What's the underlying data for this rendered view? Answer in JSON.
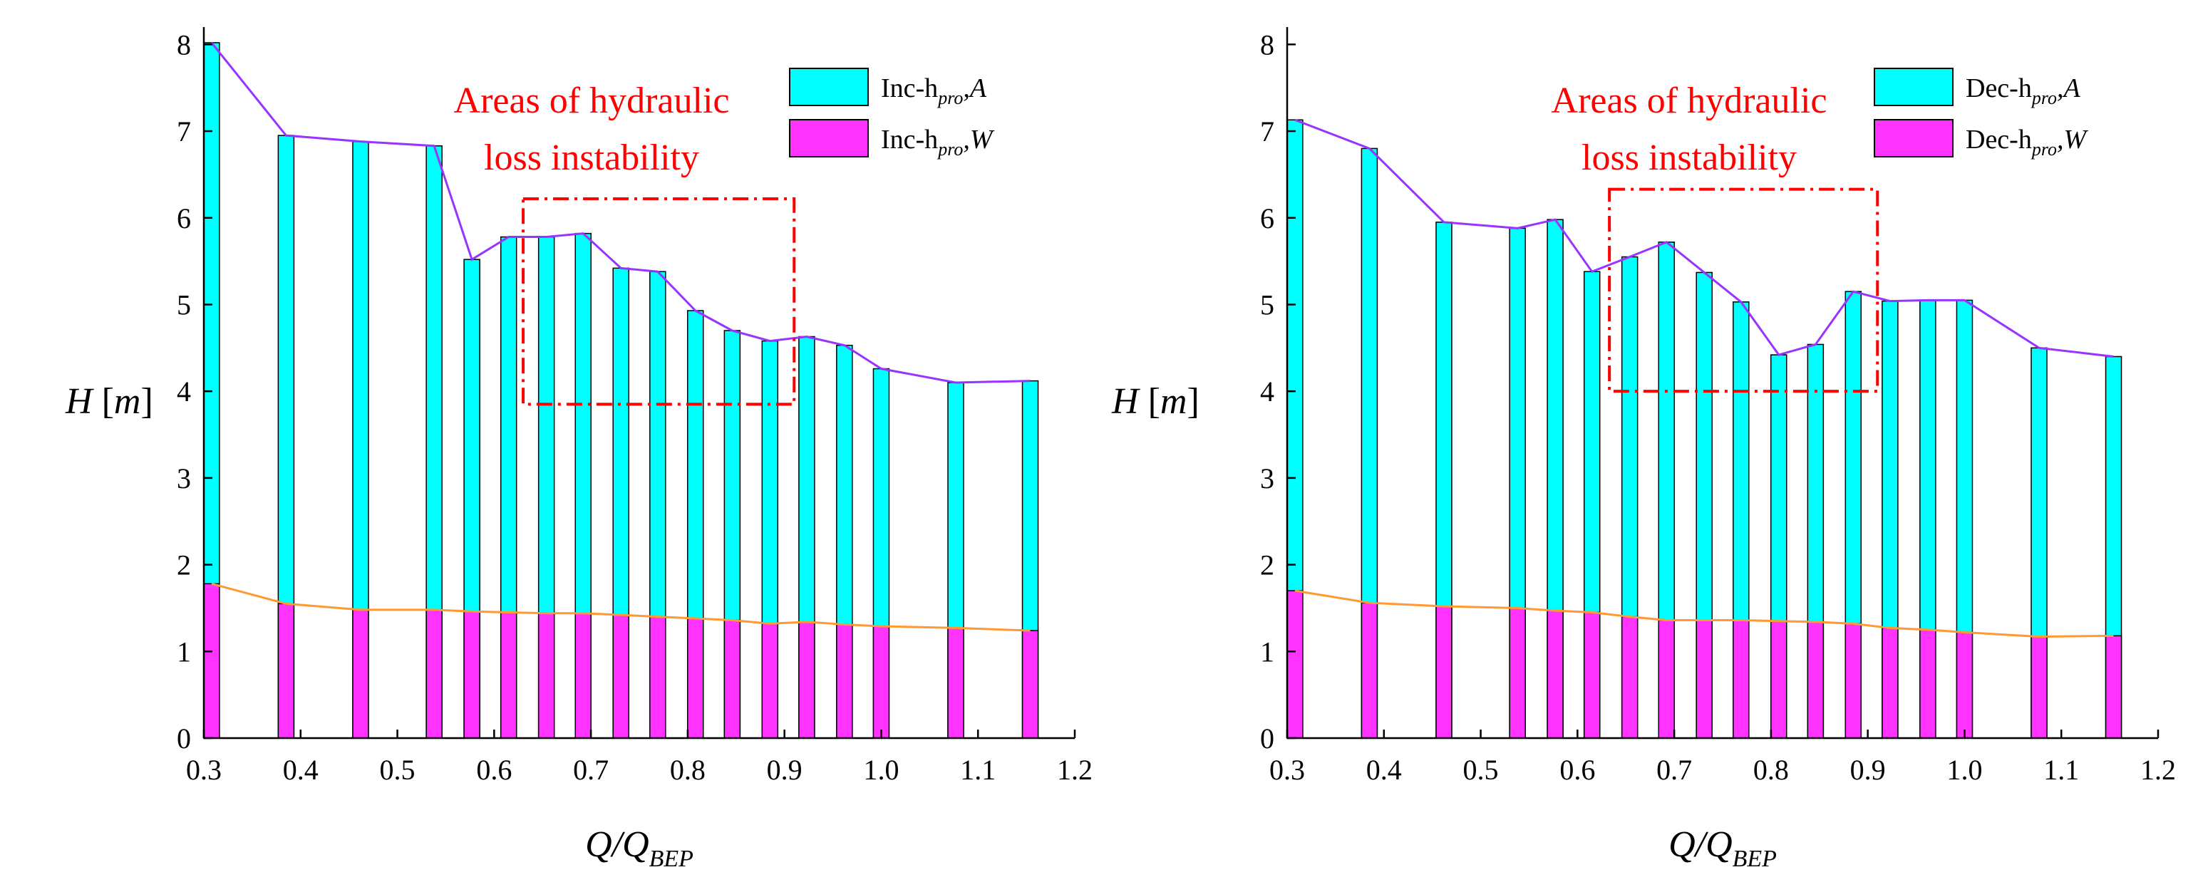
{
  "colors": {
    "bar_a": "#00ffff",
    "bar_w": "#ff33ff",
    "line_a": "#9933ff",
    "line_w": "#ff9933",
    "annotation": "#ff0000",
    "axis": "#000000"
  },
  "chart_data": [
    {
      "type": "bar",
      "title": "",
      "xlabel": "Q/Q",
      "xlabel_sub": "BEP",
      "ylabel": "H",
      "ylabel_unit": "m",
      "xlim": [
        0.3,
        1.2
      ],
      "ylim": [
        0,
        8.2
      ],
      "xticks": [
        "0.3",
        "0.4",
        "0.5",
        "0.6",
        "0.7",
        "0.8",
        "0.9",
        "1.0",
        "1.1",
        "1.2"
      ],
      "yticks": [
        "0",
        "1",
        "2",
        "3",
        "4",
        "5",
        "6",
        "7",
        "8"
      ],
      "x": [
        0.308,
        0.385,
        0.462,
        0.538,
        0.577,
        0.615,
        0.654,
        0.692,
        0.731,
        0.769,
        0.808,
        0.846,
        0.885,
        0.923,
        0.962,
        1.0,
        1.077,
        1.154
      ],
      "series": [
        {
          "name": "Inc-h",
          "name_sub": "pro",
          "name_suffix": ",A",
          "values": [
            8.02,
            6.95,
            6.88,
            6.83,
            5.52,
            5.78,
            5.78,
            5.82,
            5.42,
            5.38,
            4.93,
            4.7,
            4.58,
            4.63,
            4.53,
            4.26,
            4.1,
            4.12
          ]
        },
        {
          "name": "Inc-h",
          "name_sub": "pro",
          "name_suffix": ",W",
          "values": [
            1.78,
            1.55,
            1.48,
            1.48,
            1.46,
            1.45,
            1.44,
            1.44,
            1.42,
            1.4,
            1.38,
            1.36,
            1.32,
            1.34,
            1.31,
            1.29,
            1.27,
            1.24
          ]
        }
      ],
      "annotation": {
        "text_line1": "Areas of hydraulic",
        "text_line2": "loss instability",
        "box_x": [
          0.63,
          0.91
        ],
        "box_y": [
          3.85,
          6.22
        ]
      },
      "legend": "top-right"
    },
    {
      "type": "bar",
      "title": "",
      "xlabel": "Q/Q",
      "xlabel_sub": "BEP",
      "ylabel": "H",
      "ylabel_unit": "m",
      "xlim": [
        0.3,
        1.2
      ],
      "ylim": [
        0,
        8.2
      ],
      "xticks": [
        "0.3",
        "0.4",
        "0.5",
        "0.6",
        "0.7",
        "0.8",
        "0.9",
        "1.0",
        "1.1",
        "1.2"
      ],
      "yticks": [
        "0",
        "1",
        "2",
        "3",
        "4",
        "5",
        "6",
        "7",
        "8"
      ],
      "x": [
        0.308,
        0.385,
        0.462,
        0.538,
        0.577,
        0.615,
        0.654,
        0.692,
        0.731,
        0.769,
        0.808,
        0.846,
        0.885,
        0.923,
        0.962,
        1.0,
        1.077,
        1.154
      ],
      "series": [
        {
          "name": "Dec-h",
          "name_sub": "pro",
          "name_suffix": ",A",
          "values": [
            7.13,
            6.8,
            5.95,
            5.88,
            5.98,
            5.38,
            5.55,
            5.72,
            5.37,
            5.03,
            4.42,
            4.54,
            5.15,
            5.04,
            5.05,
            5.05,
            4.5,
            4.4
          ]
        },
        {
          "name": "Dec-h",
          "name_sub": "pro",
          "name_suffix": ",W",
          "values": [
            1.7,
            1.56,
            1.52,
            1.5,
            1.47,
            1.45,
            1.4,
            1.36,
            1.36,
            1.36,
            1.35,
            1.34,
            1.32,
            1.27,
            1.25,
            1.22,
            1.17,
            1.18
          ]
        }
      ],
      "annotation": {
        "text_line1": "Areas of hydraulic",
        "text_line2": "loss instability",
        "box_x": [
          0.633,
          0.91
        ],
        "box_y": [
          4.0,
          6.33
        ]
      },
      "legend": "top-right"
    }
  ]
}
